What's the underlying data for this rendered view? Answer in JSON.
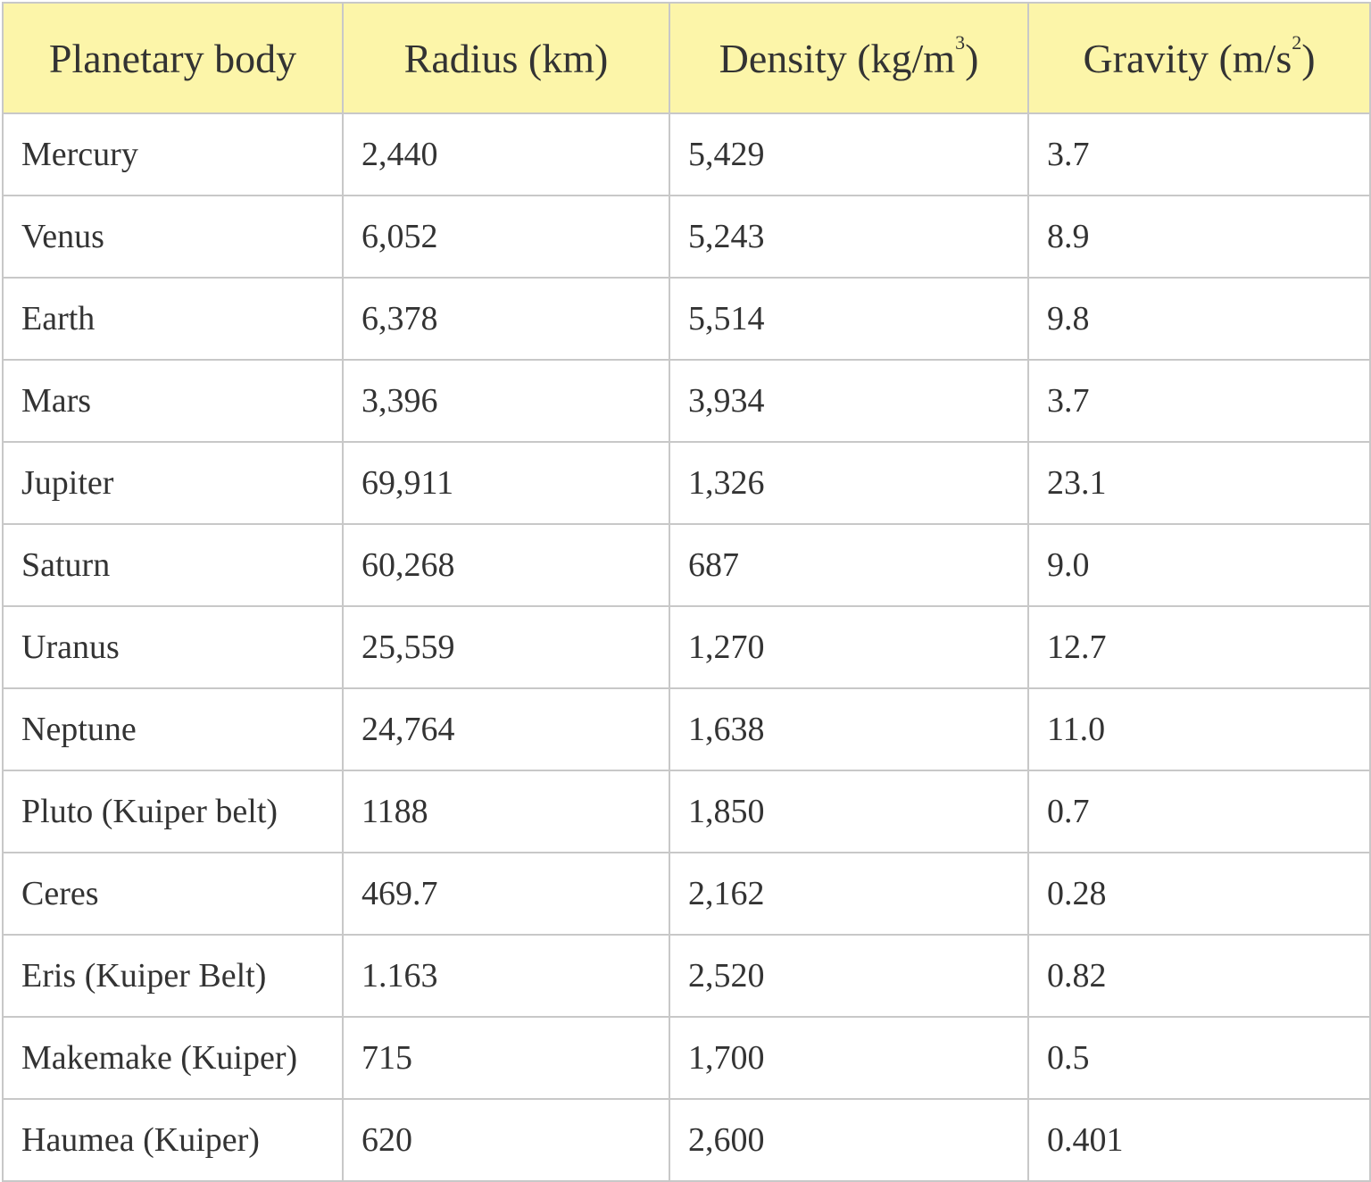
{
  "table": {
    "headers": [
      {
        "text": "Planetary body",
        "unit_base": "",
        "unit_sup": "",
        "unit_close": ""
      },
      {
        "text": "Radius (km)",
        "unit_base": "",
        "unit_sup": "",
        "unit_close": ""
      },
      {
        "text": "Density (kg/m",
        "unit_base": "",
        "unit_sup": "3",
        "unit_close": ")"
      },
      {
        "text": "Gravity (m/s",
        "unit_base": "",
        "unit_sup": "2",
        "unit_close": ")"
      }
    ],
    "rows": [
      {
        "body": "Mercury",
        "radius": "2,440",
        "density": "5,429",
        "gravity": "3.7"
      },
      {
        "body": "Venus",
        "radius": "6,052",
        "density": "5,243",
        "gravity": "8.9"
      },
      {
        "body": "Earth",
        "radius": "6,378",
        "density": "5,514",
        "gravity": "9.8"
      },
      {
        "body": "Mars",
        "radius": "3,396",
        "density": "3,934",
        "gravity": "3.7"
      },
      {
        "body": "Jupiter",
        "radius": "69,911",
        "density": "1,326",
        "gravity": "23.1"
      },
      {
        "body": "Saturn",
        "radius": "60,268",
        "density": "687",
        "gravity": "9.0"
      },
      {
        "body": "Uranus",
        "radius": "25,559",
        "density": "1,270",
        "gravity": "12.7"
      },
      {
        "body": "Neptune",
        "radius": "24,764",
        "density": "1,638",
        "gravity": "11.0"
      },
      {
        "body": "Pluto (Kuiper belt)",
        "radius": "1188",
        "density": "1,850",
        "gravity": "0.7"
      },
      {
        "body": "Ceres",
        "radius": "469.7",
        "density": "2,162",
        "gravity": "0.28"
      },
      {
        "body": "Eris (Kuiper Belt)",
        "radius": "1.163",
        "density": "2,520",
        "gravity": "0.82"
      },
      {
        "body": "Makemake (Kuiper)",
        "radius": "715",
        "density": "1,700",
        "gravity": "0.5"
      },
      {
        "body": "Haumea (Kuiper)",
        "radius": "620",
        "density": "2,600",
        "gravity": "0.401"
      }
    ]
  },
  "colors": {
    "header_background": "#fcf5a9",
    "grid_line": "#c8c8c8",
    "text": "#333333"
  }
}
